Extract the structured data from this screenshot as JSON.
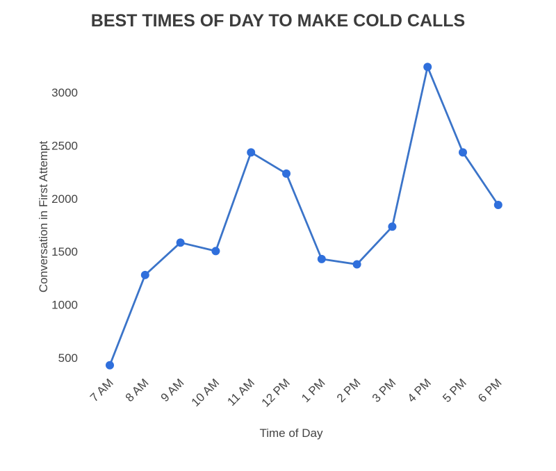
{
  "chart_data": {
    "type": "line",
    "title": "BEST TIMES OF DAY TO MAKE COLD CALLS",
    "xlabel": "Time of Day",
    "ylabel": "Conversation in First Attempt",
    "categories": [
      "7 AM",
      "8 AM",
      "9 AM",
      "10 AM",
      "11 AM",
      "12 PM",
      "1 PM",
      "2 PM",
      "3 PM",
      "4 PM",
      "5 PM",
      "6 PM"
    ],
    "values": [
      430,
      1280,
      1585,
      1505,
      2435,
      2235,
      1430,
      1380,
      1735,
      3240,
      2435,
      1940
    ],
    "yticks": [
      500,
      1000,
      1500,
      2000,
      2500,
      3000
    ],
    "ylim": [
      430,
      3240
    ],
    "grid": false,
    "colors": {
      "line": "#3b74c9",
      "marker": "#2f6fdc"
    }
  }
}
